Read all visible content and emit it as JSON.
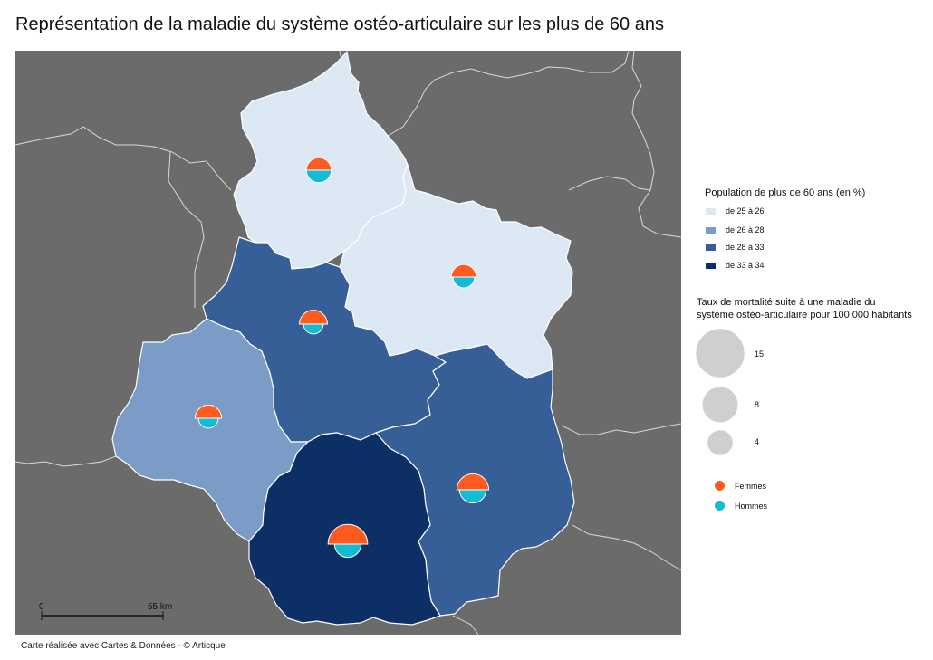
{
  "title": "Représentation de la maladie du système ostéo-articulaire sur les plus de 60 ans",
  "colors": {
    "background": "#6b6b6b",
    "border_line": "#d9d9d9",
    "femmes": "#ff5a1f",
    "hommes": "#13bcd4",
    "bubble_legend": "#cfcfcf"
  },
  "legend_population": {
    "title": "Population de plus de 60 ans (en %)",
    "classes": [
      {
        "label": "de 25 à 26",
        "color": "#dde8f5"
      },
      {
        "label": "de 26 à 28",
        "color": "#7a9cc6"
      },
      {
        "label": "de 28 à 33",
        "color": "#365f97"
      },
      {
        "label": "de 33 à 34",
        "color": "#0c2f66"
      }
    ]
  },
  "legend_mortality": {
    "title_line1": "Taux de mortalité suite à une maladie du",
    "title_line2": "système ostéo-articulaire pour 100 000 habitants",
    "sizes": [
      {
        "label": "15",
        "value": 15
      },
      {
        "label": "8",
        "value": 8
      },
      {
        "label": "4",
        "value": 4
      }
    ],
    "femmes_label": "Femmes",
    "hommes_label": "Hommes"
  },
  "regions": [
    {
      "id": "north",
      "class_index": 0,
      "femmes": 4,
      "hommes": 4
    },
    {
      "id": "northeast",
      "class_index": 0,
      "femmes": 4,
      "hommes": 3
    },
    {
      "id": "center",
      "class_index": 2,
      "femmes": 5,
      "hommes": 2.5
    },
    {
      "id": "west",
      "class_index": 1,
      "femmes": 4.5,
      "hommes": 2.5
    },
    {
      "id": "southeast",
      "class_index": 2,
      "femmes": 6.5,
      "hommes": 4.5
    },
    {
      "id": "south",
      "class_index": 3,
      "femmes": 10,
      "hommes": 4.5
    }
  ],
  "scale_bar": {
    "start_label": "0",
    "end_label": "55 km"
  },
  "credit": "Carte réalisée avec Cartes & Données - © Articque"
}
